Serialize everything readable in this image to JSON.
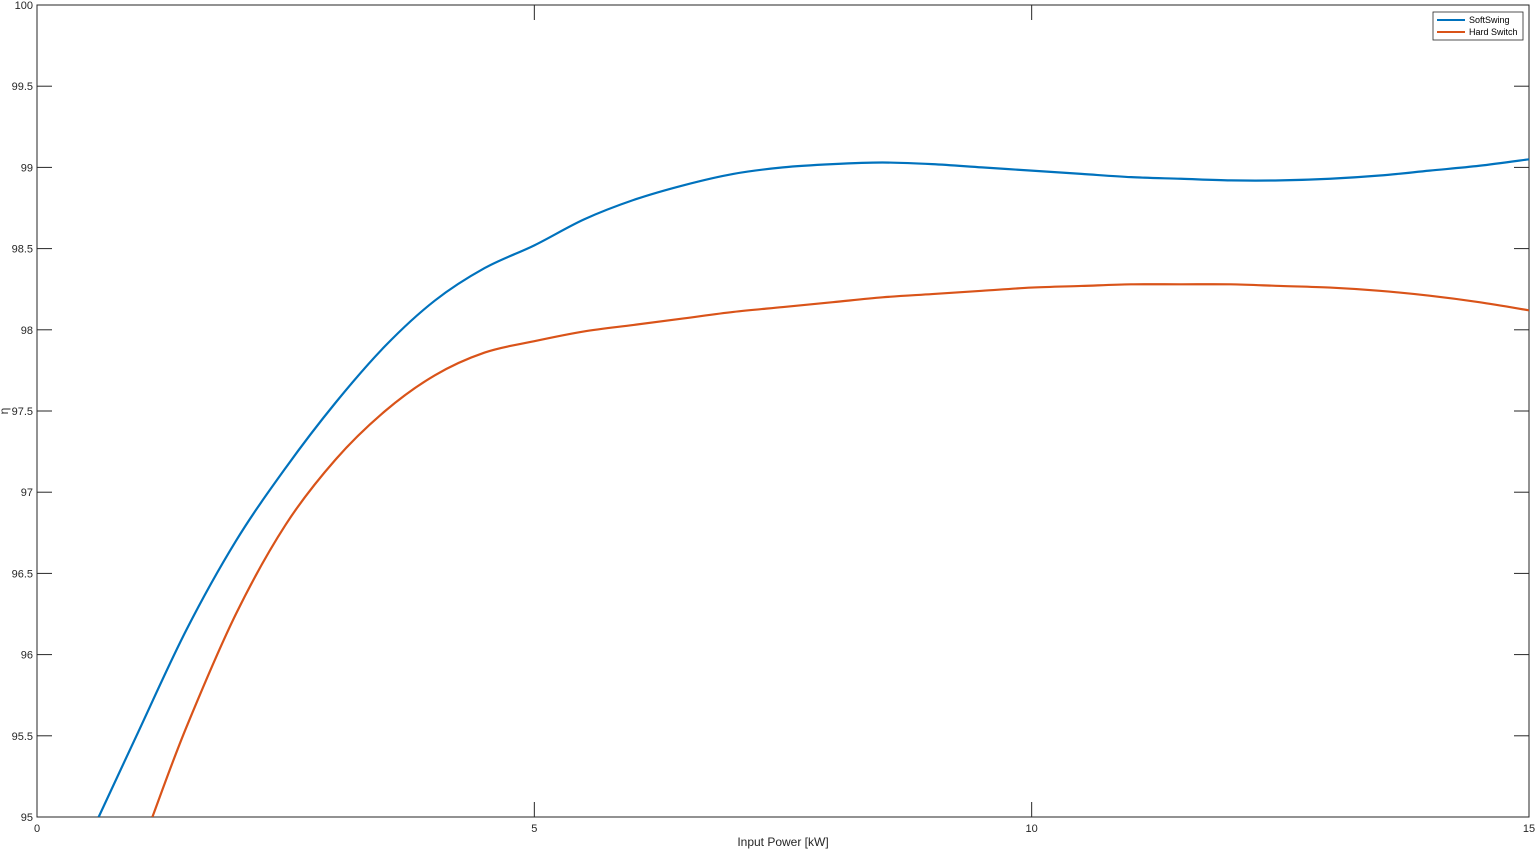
{
  "chart_data": {
    "type": "line",
    "title": "",
    "xlabel": "Input Power [kW]",
    "ylabel": "η",
    "xlim": [
      0,
      15
    ],
    "ylim": [
      95,
      100
    ],
    "xticks": [
      0,
      5,
      10,
      15
    ],
    "xtick_labels": [
      "0",
      "5",
      "10",
      "15"
    ],
    "yticks": [
      95,
      95.5,
      96,
      96.5,
      97,
      97.5,
      98,
      98.5,
      99,
      99.5,
      100
    ],
    "ytick_labels": [
      "95",
      "95.5",
      "96",
      "96.5",
      "97",
      "97.5",
      "98",
      "98.5",
      "99",
      "99.5",
      "100"
    ],
    "grid": false,
    "legend_position": "top-right",
    "series": [
      {
        "name": "SoftSwing",
        "color": "#0072BD",
        "x": [
          0.62,
          1.0,
          1.5,
          2.0,
          2.5,
          3.0,
          3.5,
          4.0,
          4.5,
          5.0,
          5.5,
          6.0,
          6.5,
          7.0,
          7.5,
          8.0,
          8.5,
          9.0,
          9.5,
          10.0,
          10.5,
          11.0,
          11.5,
          12.0,
          12.5,
          13.0,
          13.5,
          14.0,
          14.5,
          15.0
        ],
        "y": [
          95.0,
          95.5,
          96.15,
          96.7,
          97.15,
          97.55,
          97.9,
          98.18,
          98.38,
          98.52,
          98.68,
          98.8,
          98.89,
          98.96,
          99.0,
          99.02,
          99.03,
          99.02,
          99.0,
          98.98,
          98.96,
          98.94,
          98.93,
          98.92,
          98.92,
          98.93,
          98.95,
          98.98,
          99.01,
          99.05
        ]
      },
      {
        "name": "Hard Switch",
        "color": "#D95319",
        "x": [
          1.16,
          1.5,
          2.0,
          2.5,
          3.0,
          3.5,
          4.0,
          4.5,
          5.0,
          5.5,
          6.0,
          6.5,
          7.0,
          7.5,
          8.0,
          8.5,
          9.0,
          9.5,
          10.0,
          10.5,
          11.0,
          11.5,
          12.0,
          12.5,
          13.0,
          13.5,
          14.0,
          14.5,
          15.0
        ],
        "y": [
          95.0,
          95.55,
          96.25,
          96.8,
          97.2,
          97.5,
          97.72,
          97.86,
          97.93,
          97.99,
          98.03,
          98.07,
          98.11,
          98.14,
          98.17,
          98.2,
          98.22,
          98.24,
          98.26,
          98.27,
          98.28,
          98.28,
          98.28,
          98.27,
          98.26,
          98.24,
          98.21,
          98.17,
          98.12
        ]
      }
    ]
  }
}
